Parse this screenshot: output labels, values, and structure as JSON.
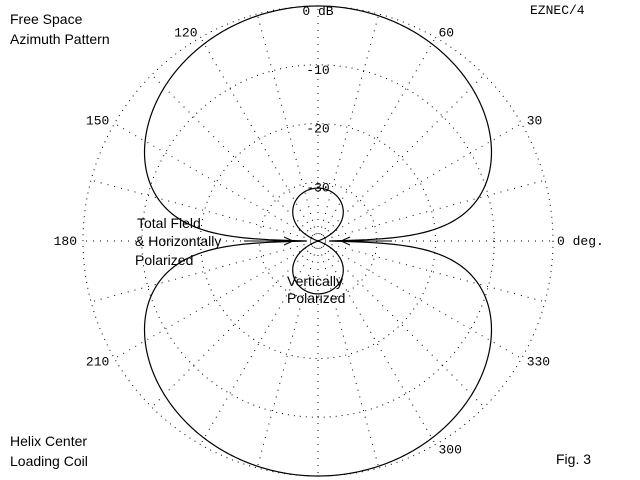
{
  "chart_data": {
    "type": "polar",
    "plot_kind": "azimuth pattern",
    "software_label": "EZNEC/4",
    "title_lines": [
      "Free Space",
      "Azimuth Pattern"
    ],
    "bottom_left_lines": [
      "Helix Center",
      "Loading Coil"
    ],
    "figure_label": "Fig. 3",
    "angle_ticks": [
      {
        "angle": 0,
        "label": "0 deg."
      },
      {
        "angle": 30,
        "label": "30"
      },
      {
        "angle": 60,
        "label": "60"
      },
      {
        "angle": 120,
        "label": "120"
      },
      {
        "angle": 150,
        "label": "150"
      },
      {
        "angle": 180,
        "label": "180"
      },
      {
        "angle": 210,
        "label": "210"
      },
      {
        "angle": 300,
        "label": "300"
      },
      {
        "angle": 330,
        "label": "330"
      }
    ],
    "radial_ticks": [
      {
        "db": 0,
        "label": "0 dB"
      },
      {
        "db": -10,
        "label": "-10"
      },
      {
        "db": -20,
        "label": "-20"
      },
      {
        "db": -30,
        "label": "-30"
      }
    ],
    "radial_range_db": [
      -40,
      0
    ],
    "grid": true,
    "series": [
      {
        "name": "Total Field & Horizontally Polarized",
        "label_lines": [
          "Total Field",
          "& Horizontally",
          "Polarized"
        ],
        "pattern": "figure-eight",
        "max_gain_db": 0,
        "max_direction_deg": [
          90,
          270
        ],
        "null_direction_deg": [
          0,
          180
        ],
        "null_depth_db": -38
      },
      {
        "name": "Vertically Polarized",
        "label_lines": [
          "Vertically",
          "Polarized"
        ],
        "pattern": "figure-eight",
        "max_gain_db": -31,
        "max_direction_deg": [
          90,
          270
        ],
        "null_direction_deg": [
          0,
          180
        ]
      }
    ]
  }
}
